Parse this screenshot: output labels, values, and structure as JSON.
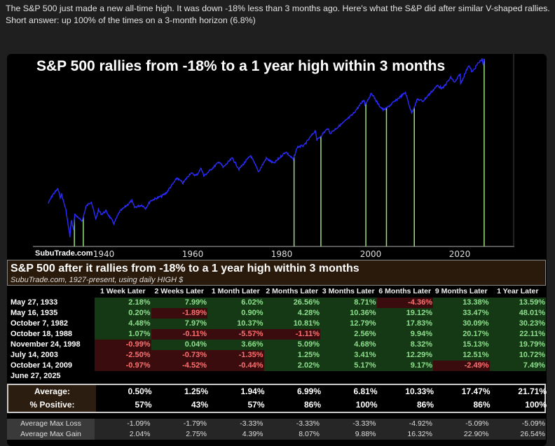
{
  "post_text": "The S&P 500 just made a new all-time high. It was down -18% less than 3 months ago. Here's what the S&P did after similar V-shaped rallies. Short answer: up 100% of the times on a 3-month horizon (6.8%)",
  "chart_data": {
    "type": "line",
    "title": "S&P 500 rallies from -18% to a 1 year high within 3 months",
    "watermark": "SubuTrade.com",
    "x_ticks": [
      "1940",
      "1960",
      "1980",
      "2000",
      "2020"
    ],
    "xlim": [
      1927,
      2026
    ],
    "yscale": "log",
    "ylim": [
      4,
      6500
    ],
    "series": [
      {
        "name": "S&P 500",
        "color": "#2b2bff",
        "points": [
          [
            1927.5,
            17
          ],
          [
            1928.5,
            24
          ],
          [
            1929.7,
            31
          ],
          [
            1930.2,
            22
          ],
          [
            1930.5,
            25
          ],
          [
            1931.5,
            13
          ],
          [
            1932.4,
            4.4
          ],
          [
            1932.7,
            8.5
          ],
          [
            1933.2,
            6
          ],
          [
            1933.5,
            11
          ],
          [
            1934.5,
            9
          ],
          [
            1935.2,
            8.5
          ],
          [
            1936,
            15
          ],
          [
            1937.2,
            18.5
          ],
          [
            1938.2,
            9
          ],
          [
            1938.8,
            13
          ],
          [
            1939.5,
            11
          ],
          [
            1940.5,
            12.5
          ],
          [
            1942.3,
            7.5
          ],
          [
            1943.5,
            12
          ],
          [
            1946.3,
            19
          ],
          [
            1946.9,
            14.5
          ],
          [
            1948.5,
            16
          ],
          [
            1949.4,
            14
          ],
          [
            1950.5,
            19
          ],
          [
            1953,
            23
          ],
          [
            1954,
            26
          ],
          [
            1956.5,
            48
          ],
          [
            1957.8,
            39
          ],
          [
            1959.5,
            59
          ],
          [
            1960.8,
            53
          ],
          [
            1961.9,
            72
          ],
          [
            1962.5,
            52
          ],
          [
            1966,
            94
          ],
          [
            1966.8,
            74
          ],
          [
            1968.9,
            108
          ],
          [
            1970.4,
            69
          ],
          [
            1973,
            120
          ],
          [
            1974.8,
            62
          ],
          [
            1976.5,
            107
          ],
          [
            1978.2,
            87
          ],
          [
            1980.9,
            140
          ],
          [
            1982.6,
            102
          ],
          [
            1983.5,
            170
          ],
          [
            1985,
            180
          ],
          [
            1987.6,
            336
          ],
          [
            1987.9,
            224
          ],
          [
            1990.4,
            368
          ],
          [
            1990.8,
            295
          ],
          [
            1994,
            470
          ],
          [
            1996,
            650
          ],
          [
            1998.5,
            1180
          ],
          [
            1998.7,
            960
          ],
          [
            2000.2,
            1527
          ],
          [
            2001.7,
            965
          ],
          [
            2002.8,
            776
          ],
          [
            2003.3,
            800
          ],
          [
            2007.8,
            1565
          ],
          [
            2009.2,
            676
          ],
          [
            2010.5,
            1200
          ],
          [
            2011.7,
            1100
          ],
          [
            2015,
            2100
          ],
          [
            2016.1,
            1830
          ],
          [
            2018,
            2900
          ],
          [
            2018.9,
            2350
          ],
          [
            2020.1,
            3386
          ],
          [
            2020.2,
            2237
          ],
          [
            2022,
            4800
          ],
          [
            2022.8,
            3577
          ],
          [
            2024,
            5000
          ],
          [
            2025,
            6100
          ],
          [
            2025.3,
            4900
          ],
          [
            2025.5,
            6200
          ]
        ]
      }
    ],
    "markers": {
      "color": "#9ee07a",
      "dates": [
        1933.4,
        1935.4,
        1982.77,
        1988.8,
        1998.9,
        2003.53,
        2009.79,
        2025.49
      ]
    }
  },
  "table": {
    "title": "S&P 500 after it rallies from -18% to a 1 year high within 3 months",
    "subtitle": "SubuTrade.com, 1927-present, using daily HIGH $",
    "columns": [
      "1 Week Later",
      "2 Weeks Later",
      "1 Month Later",
      "2 Months Later",
      "3 Months Later",
      "6 Months Later",
      "9 Months Later",
      "1 Year Later"
    ],
    "rows": [
      {
        "date": "May 27, 1933",
        "values": [
          "2.18%",
          "7.99%",
          "6.02%",
          "26.56%",
          "8.71%",
          "-4.36%",
          "13.38%",
          "13.59%"
        ]
      },
      {
        "date": "May 16, 1935",
        "values": [
          "0.20%",
          "-1.89%",
          "0.90%",
          "4.28%",
          "10.36%",
          "19.12%",
          "33.47%",
          "48.01%"
        ]
      },
      {
        "date": "October 7, 1982",
        "values": [
          "4.48%",
          "7.97%",
          "10.37%",
          "10.81%",
          "12.79%",
          "17.83%",
          "30.09%",
          "30.23%"
        ]
      },
      {
        "date": "October 18, 1988",
        "values": [
          "1.07%",
          "-0.11%",
          "-5.57%",
          "-1.11%",
          "2.56%",
          "9.94%",
          "20.17%",
          "22.11%"
        ]
      },
      {
        "date": "November 24, 1998",
        "values": [
          "-0.99%",
          "0.04%",
          "3.66%",
          "5.09%",
          "4.68%",
          "8.32%",
          "15.13%",
          "19.79%"
        ]
      },
      {
        "date": "July 14, 2003",
        "values": [
          "-2.50%",
          "-0.73%",
          "-1.35%",
          "1.25%",
          "3.41%",
          "12.29%",
          "12.51%",
          "10.72%"
        ]
      },
      {
        "date": "October 14, 2009",
        "values": [
          "-0.97%",
          "-4.52%",
          "-0.44%",
          "2.02%",
          "5.17%",
          "9.17%",
          "-2.49%",
          "7.49%"
        ]
      },
      {
        "date": "June 27, 2025",
        "values": [
          "",
          "",
          "",
          "",
          "",
          "",
          "",
          ""
        ]
      }
    ],
    "summary": [
      {
        "label": "Average:",
        "values": [
          "0.50%",
          "1.25%",
          "1.94%",
          "6.99%",
          "6.81%",
          "10.33%",
          "17.47%",
          "21.71%"
        ]
      },
      {
        "label": "% Positive:",
        "values": [
          "57%",
          "43%",
          "57%",
          "86%",
          "100%",
          "86%",
          "86%",
          "100%"
        ]
      }
    ],
    "max": [
      {
        "label": "Average Max Loss",
        "values": [
          "-1.09%",
          "-1.79%",
          "-3.33%",
          "-3.33%",
          "-3.33%",
          "-4.92%",
          "-5.09%",
          "-5.09%"
        ]
      },
      {
        "label": "Average Max Gain",
        "values": [
          "2.04%",
          "2.75%",
          "4.39%",
          "8.07%",
          "9.88%",
          "16.32%",
          "22.90%",
          "26.54%"
        ]
      }
    ]
  }
}
